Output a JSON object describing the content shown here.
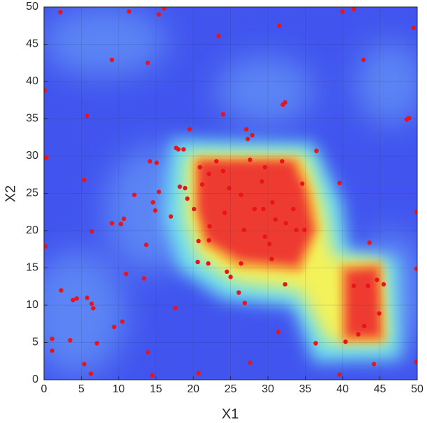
{
  "chart_data": {
    "type": "scatter",
    "xlabel": "X1",
    "ylabel": "X2",
    "color": "#e8141a",
    "grid": true,
    "xlim": [
      0,
      50
    ],
    "ylim": [
      0,
      50
    ],
    "xticks": [
      0,
      5,
      10,
      15,
      20,
      25,
      30,
      35,
      40,
      45,
      50
    ],
    "yticks": [
      0,
      5,
      10,
      15,
      20,
      25,
      30,
      35,
      40,
      45,
      50
    ],
    "x": [
      0.1,
      0.3,
      0.2,
      2.2,
      2.3,
      1.1,
      1.1,
      3.5,
      3.9,
      4.4,
      5.4,
      5.8,
      6.4,
      6.6,
      6.3,
      7.1,
      5.8,
      5.4,
      6.4,
      9.1,
      9.1,
      9.4,
      10.3,
      10.7,
      10.5,
      11.0,
      11.4,
      12.1,
      13.4,
      13.7,
      13.9,
      13.9,
      14.5,
      14.2,
      14.6,
      14.9,
      15.1,
      15.4,
      15.4,
      16.1,
      17.0,
      17.6,
      17.7,
      18.0,
      18.7,
      18.2,
      18.9,
      19.2,
      19.5,
      20.1,
      20.7,
      20.6,
      20.7,
      22.0,
      22.1,
      23.1,
      23.4,
      24.0,
      24.2,
      24.5,
      25.0,
      26.1,
      26.9,
      26.4,
      27.1,
      27.3,
      27.6,
      27.9,
      27.6,
      29.2,
      29.4,
      29.6,
      30.2,
      30.5,
      31.5,
      32.0,
      32.3,
      32.3,
      31.4,
      34.6,
      36.5,
      36.4,
      34.9,
      39.6,
      40.0,
      41.5,
      42.8,
      43.6,
      43.4,
      41.5,
      42.9,
      42.1,
      40.4,
      44.2,
      44.6,
      44.9,
      45.5,
      39.6,
      48.6,
      48.9,
      49.5,
      49.9,
      49.9,
      49.9,
      20.9,
      22.1,
      21.2,
      24.0,
      24.8,
      26.4,
      26.8,
      28.2,
      30.6,
      31.0,
      32.4,
      33.4,
      33.8,
      22.2,
      29.6,
      31.9
    ],
    "y": [
      38.8,
      29.8,
      17.9,
      49.3,
      12.0,
      5.5,
      3.9,
      5.3,
      10.7,
      10.9,
      2.1,
      11.0,
      10.2,
      9.6,
      0.8,
      4.9,
      35.4,
      26.8,
      19.9,
      42.9,
      21.0,
      7.1,
      20.9,
      21.6,
      7.8,
      14.2,
      49.4,
      24.8,
      13.6,
      18.1,
      3.7,
      42.5,
      0.6,
      29.3,
      23.8,
      22.7,
      29.1,
      49.0,
      25.2,
      49.8,
      21.9,
      9.6,
      31.1,
      30.9,
      30.9,
      25.9,
      25.7,
      24.3,
      33.6,
      22.9,
      18.6,
      15.8,
      0.9,
      15.6,
      18.7,
      29.3,
      46.1,
      35.6,
      22.4,
      14.5,
      13.8,
      11.7,
      10.3,
      15.6,
      33.6,
      32.3,
      29.5,
      32.8,
      2.3,
      26.6,
      22.9,
      19.2,
      18.2,
      16.2,
      47.5,
      36.9,
      37.2,
      12.8,
      6.4,
      26.3,
      30.7,
      4.9,
      20.1,
      26.4,
      49.4,
      49.7,
      42.9,
      18.4,
      12.6,
      12.6,
      7.2,
      6.1,
      5.1,
      2.1,
      13.4,
      8.9,
      12.8,
      0.7,
      34.9,
      35.1,
      47.2,
      22.5,
      14.9,
      2.4,
      28.5,
      27.6,
      26.2,
      28.0,
      25.7,
      24.8,
      20.1,
      22.9,
      23.8,
      21.5,
      21.0,
      22.9,
      20.1,
      20.6,
      28.5,
      29.3
    ]
  }
}
